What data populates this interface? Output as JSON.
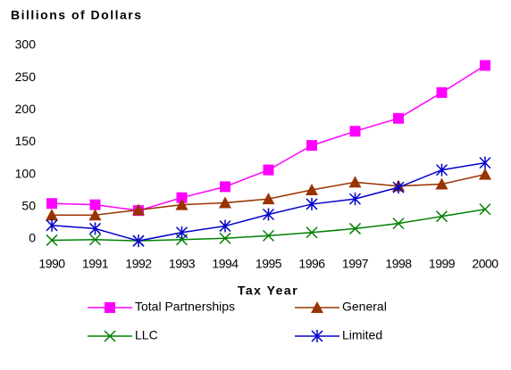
{
  "chart_data": {
    "type": "line",
    "y_axis_label": "Billions of Dollars",
    "x_axis_label": "Tax Year",
    "categories": [
      "1990",
      "1991",
      "1992",
      "1993",
      "1994",
      "1995",
      "1996",
      "1997",
      "1998",
      "1999",
      "2000"
    ],
    "ylim": [
      0,
      300
    ],
    "yticks": [
      0,
      50,
      100,
      150,
      200,
      250,
      300
    ],
    "series": [
      {
        "name": "Total Partnerships",
        "color": "#ff00ff",
        "marker": "square",
        "values": [
          55,
          53,
          44,
          64,
          81,
          107,
          145,
          167,
          187,
          227,
          269
        ]
      },
      {
        "name": "General",
        "color": "#993300",
        "marker": "triangle",
        "values": [
          37,
          37,
          45,
          53,
          56,
          62,
          76,
          88,
          82,
          85,
          100
        ]
      },
      {
        "name": "LLC",
        "color": "#008000",
        "marker": "x",
        "values": [
          -2,
          -1,
          -3,
          -1,
          1,
          5,
          10,
          16,
          24,
          35,
          46
        ]
      },
      {
        "name": "Limited",
        "color": "#0000cc",
        "marker": "asterisk",
        "values": [
          21,
          16,
          -3,
          10,
          20,
          38,
          54,
          62,
          80,
          107,
          118
        ]
      }
    ]
  }
}
